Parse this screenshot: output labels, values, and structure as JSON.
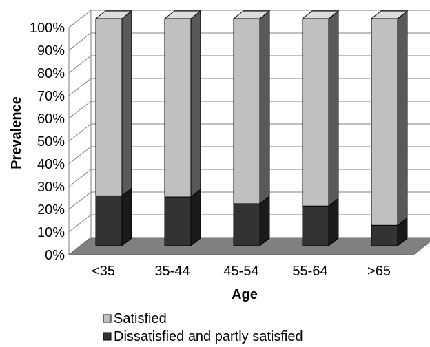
{
  "chart_data": {
    "type": "bar",
    "stacked": true,
    "three_d": true,
    "percent_stacked": true,
    "categories": [
      "<35",
      "35-44",
      "45-54",
      "55-64",
      ">65"
    ],
    "series": [
      {
        "name": "Dissatisfied and partly satisfied",
        "values": [
          22,
          21.5,
          18.5,
          17.5,
          9
        ],
        "color": "#333333"
      },
      {
        "name": "Satisfied",
        "values": [
          78,
          78.5,
          81.5,
          82.5,
          91
        ],
        "color": "#c0c0c0"
      }
    ],
    "title": "",
    "xlabel": "Age",
    "ylabel": "Prevalence",
    "ylim": [
      0,
      100
    ],
    "yticks": [
      "0%",
      "10%",
      "20%",
      "30%",
      "40%",
      "50%",
      "60%",
      "70%",
      "80%",
      "90%",
      "100%"
    ],
    "grid": true,
    "legend_position": "bottom",
    "legend": [
      "Satisfied",
      "Dissatisfied and partly satisfied"
    ]
  }
}
